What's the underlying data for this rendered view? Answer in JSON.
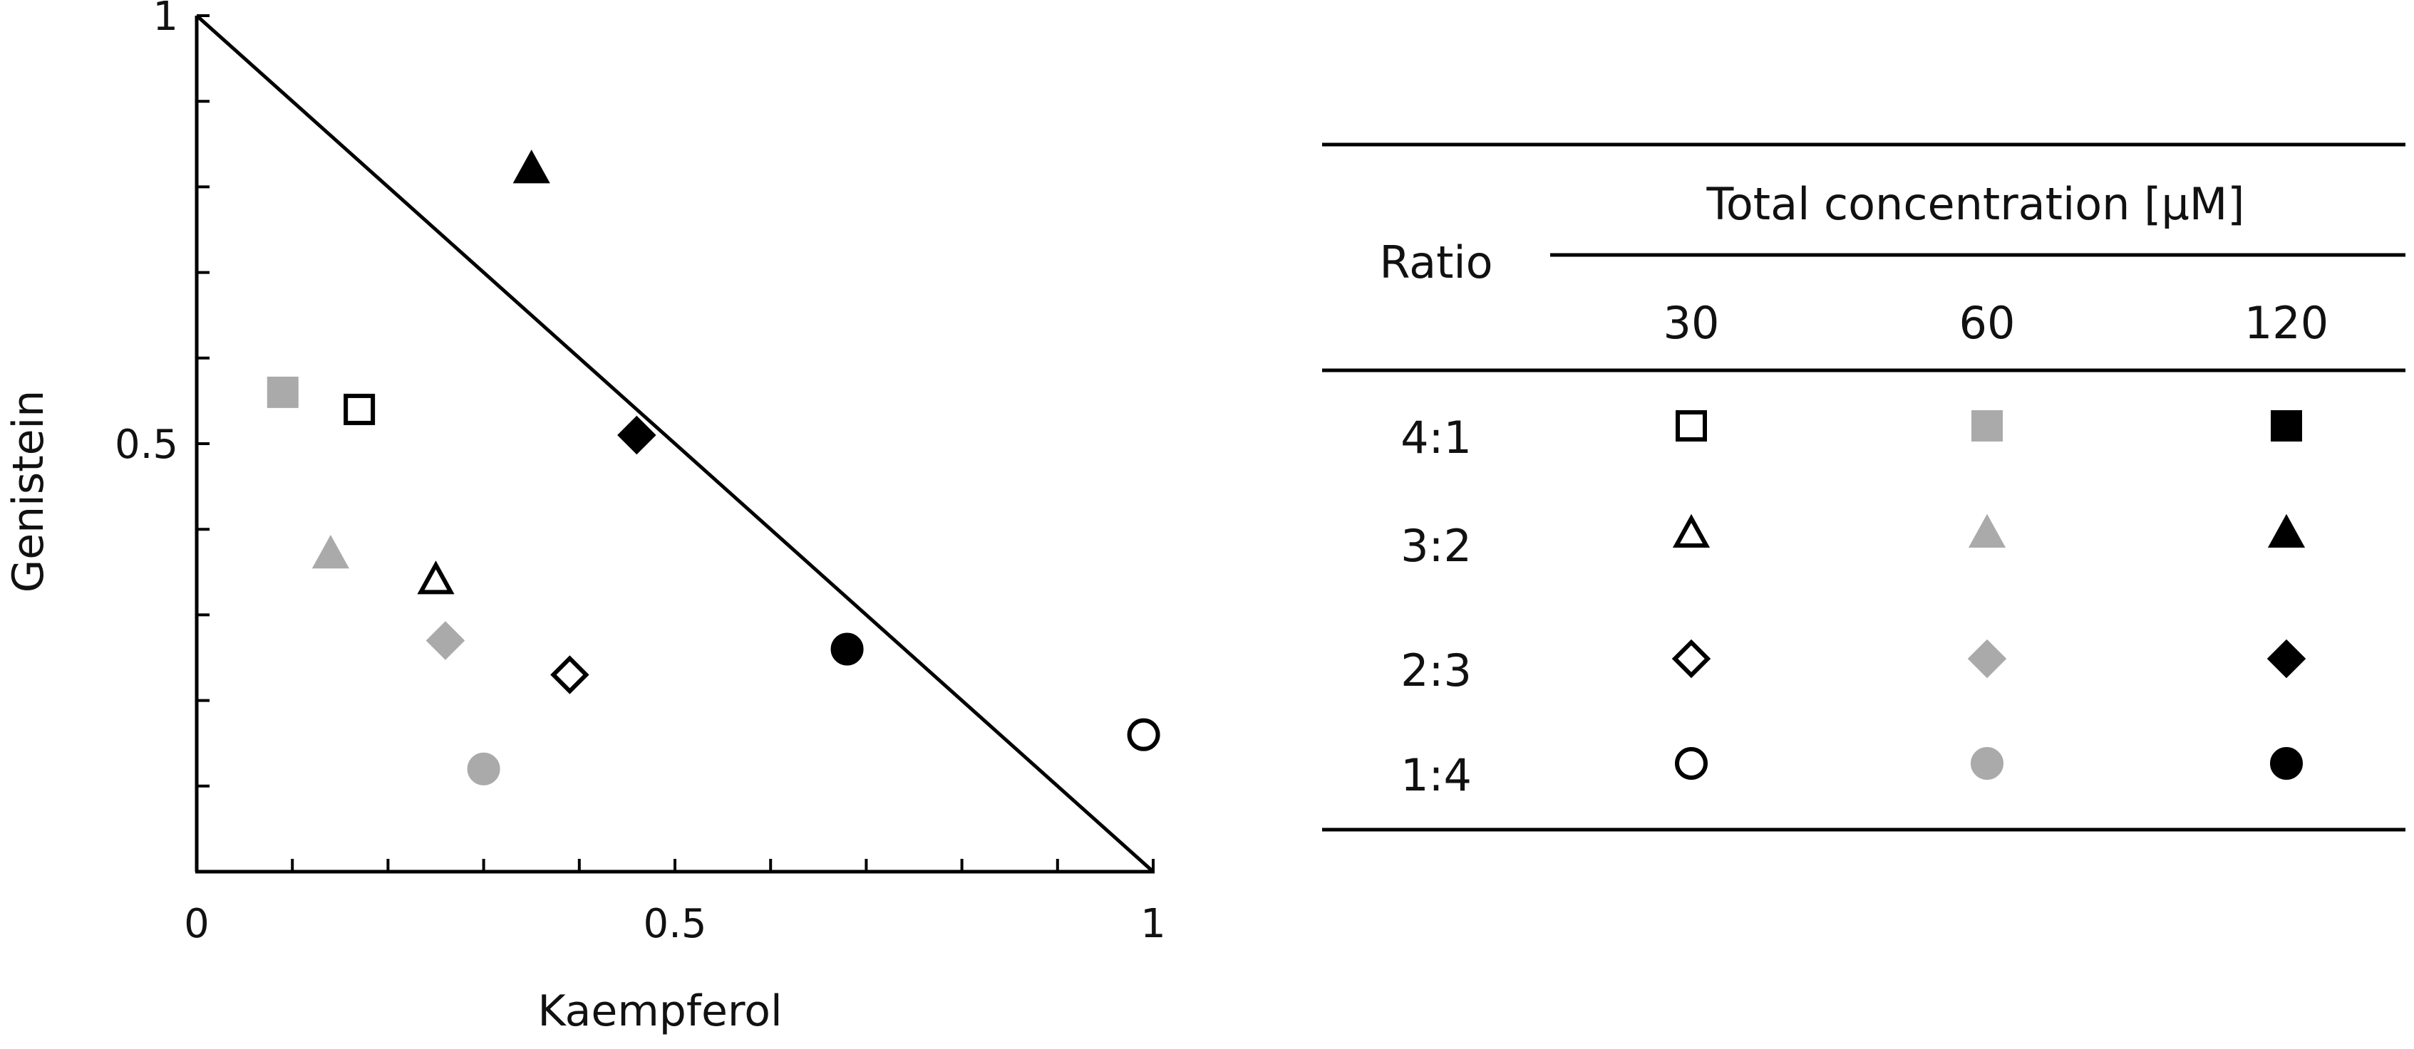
{
  "chart_data": {
    "type": "scatter",
    "xlabel": "Kaempferol",
    "ylabel": "Genistein",
    "xlim": [
      0,
      1
    ],
    "ylim": [
      0,
      1
    ],
    "x_tick_labels": [
      "0",
      "0.5",
      "1"
    ],
    "y_tick_labels": [
      "0.5",
      "1"
    ],
    "x_minor_ticks": [
      0.1,
      0.2,
      0.3,
      0.4,
      0.6,
      0.7,
      0.8,
      0.9
    ],
    "y_minor_ticks": [
      0.1,
      0.2,
      0.3,
      0.4,
      0.6,
      0.7,
      0.8,
      0.9
    ],
    "reference_line": {
      "x": [
        0,
        1
      ],
      "y": [
        1,
        0
      ]
    },
    "grid": false,
    "points": [
      {
        "ratio": "4:1",
        "concentration": "30",
        "marker": "square",
        "fill": "#ffffff",
        "stroke": "#000000",
        "x": 0.17,
        "y": 0.54
      },
      {
        "ratio": "4:1",
        "concentration": "60",
        "marker": "square",
        "fill": "#aaaaaa",
        "stroke": "#aaaaaa",
        "x": 0.09,
        "y": 0.56
      },
      {
        "ratio": "3:2",
        "concentration": "30",
        "marker": "triangle",
        "fill": "#ffffff",
        "stroke": "#000000",
        "x": 0.25,
        "y": 0.34
      },
      {
        "ratio": "3:2",
        "concentration": "60",
        "marker": "triangle",
        "fill": "#aaaaaa",
        "stroke": "#aaaaaa",
        "x": 0.14,
        "y": 0.37
      },
      {
        "ratio": "3:2",
        "concentration": "120",
        "marker": "triangle",
        "fill": "#000000",
        "stroke": "#000000",
        "x": 0.35,
        "y": 0.82
      },
      {
        "ratio": "2:3",
        "concentration": "30",
        "marker": "diamond",
        "fill": "#ffffff",
        "stroke": "#000000",
        "x": 0.39,
        "y": 0.23
      },
      {
        "ratio": "2:3",
        "concentration": "60",
        "marker": "diamond",
        "fill": "#aaaaaa",
        "stroke": "#aaaaaa",
        "x": 0.26,
        "y": 0.27
      },
      {
        "ratio": "2:3",
        "concentration": "120",
        "marker": "diamond",
        "fill": "#000000",
        "stroke": "#000000",
        "x": 0.46,
        "y": 0.51
      },
      {
        "ratio": "1:4",
        "concentration": "30",
        "marker": "circle",
        "fill": "#ffffff",
        "stroke": "#000000",
        "x": 0.99,
        "y": 0.16
      },
      {
        "ratio": "1:4",
        "concentration": "60",
        "marker": "circle",
        "fill": "#aaaaaa",
        "stroke": "#aaaaaa",
        "x": 0.3,
        "y": 0.12
      },
      {
        "ratio": "1:4",
        "concentration": "120",
        "marker": "circle",
        "fill": "#000000",
        "stroke": "#000000",
        "x": 0.68,
        "y": 0.26
      }
    ]
  },
  "legend_table": {
    "row_header": "Ratio",
    "group_header": "Total concentration [µM]",
    "columns": [
      "30",
      "60",
      "120"
    ],
    "column_styles": [
      {
        "fill": "#ffffff",
        "stroke": "#000000"
      },
      {
        "fill": "#aaaaaa",
        "stroke": "#aaaaaa"
      },
      {
        "fill": "#000000",
        "stroke": "#000000"
      }
    ],
    "rows": [
      {
        "label": "4:1",
        "marker": "square"
      },
      {
        "label": "3:2",
        "marker": "triangle"
      },
      {
        "label": "2:3",
        "marker": "diamond"
      },
      {
        "label": "1:4",
        "marker": "circle"
      }
    ]
  }
}
